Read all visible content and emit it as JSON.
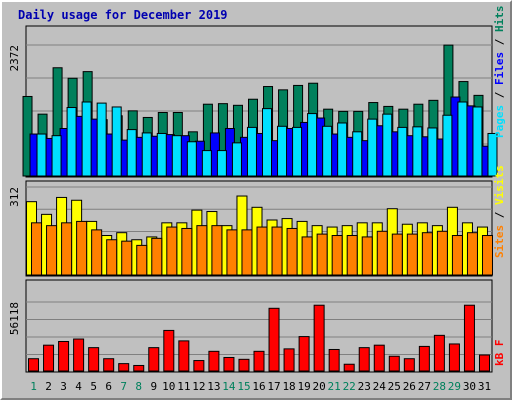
{
  "chart_data": {
    "type": "bar",
    "title": "Daily usage for December 2019",
    "categories": [
      "1",
      "2",
      "3",
      "4",
      "5",
      "6",
      "7",
      "8",
      "9",
      "10",
      "11",
      "12",
      "13",
      "14",
      "15",
      "16",
      "17",
      "18",
      "19",
      "20",
      "21",
      "22",
      "23",
      "24",
      "25",
      "26",
      "27",
      "28",
      "29",
      "30",
      "31"
    ],
    "weekend_days": [
      "1",
      "7",
      "8",
      "14",
      "15",
      "21",
      "22",
      "28",
      "29"
    ],
    "panels": [
      {
        "name": "requests",
        "max_label": "2372",
        "ymax": 2372,
        "ylabel_parts": [
          "Pages",
          "Files",
          "Hits"
        ],
        "series": [
          {
            "name": "Hits",
            "color": "#00805c",
            "values": [
              1440,
              1120,
              1960,
              1770,
              1890,
              1020,
              1090,
              1180,
              1060,
              1150,
              1150,
              800,
              1300,
              1310,
              1280,
              1390,
              1620,
              1560,
              1640,
              1680,
              1210,
              1170,
              1170,
              1330,
              1260,
              1210,
              1300,
              1370,
              2370,
              1710,
              1460
            ]
          },
          {
            "name": "Files",
            "color": "#0000ff",
            "values": [
              760,
              680,
              860,
              1080,
              1030,
              760,
              650,
              700,
              720,
              750,
              730,
              630,
              780,
              860,
              700,
              770,
              640,
              860,
              970,
              1050,
              760,
              700,
              640,
              910,
              800,
              730,
              710,
              670,
              1430,
              1270,
              540
            ]
          },
          {
            "name": "Pages",
            "color": "#00e0ff",
            "values": [
              760,
              730,
              1240,
              1340,
              1320,
              1250,
              840,
              780,
              770,
              730,
              620,
              460,
              460,
              600,
              880,
              1220,
              900,
              880,
              1130,
              900,
              960,
              800,
              1030,
              1120,
              880,
              890,
              870,
              1100,
              1340,
              1250,
              770
            ]
          }
        ]
      },
      {
        "name": "visitors",
        "max_label": "312",
        "ymax": 312,
        "ylabel_parts": [
          "Sites",
          "Visits"
        ],
        "series": [
          {
            "name": "Visits",
            "color": "#ffff00",
            "values": [
              260,
              215,
              275,
              265,
              190,
              140,
              150,
              125,
              135,
              185,
              185,
              230,
              225,
              175,
              280,
              240,
              195,
              200,
              190,
              175,
              170,
              175,
              185,
              185,
              235,
              180,
              185,
              175,
              240,
              185,
              170
            ]
          },
          {
            "name": "Sites",
            "color": "#ff8000",
            "values": [
              185,
              175,
              185,
              190,
              160,
              125,
              120,
              105,
              130,
              170,
              165,
              175,
              175,
              160,
              160,
              170,
              170,
              165,
              135,
              145,
              140,
              140,
              135,
              155,
              145,
              145,
              150,
              155,
              140,
              150,
              140
            ]
          }
        ]
      },
      {
        "name": "volume",
        "max_label": "56118",
        "ymax": 56118,
        "ylabel_parts": [
          "kB F"
        ],
        "series": [
          {
            "name": "kB F",
            "color": "#ff0000",
            "values": [
              10000,
              21000,
              24000,
              26000,
              19000,
              10000,
              6000,
              4500,
              19000,
              33000,
              24500,
              8500,
              16000,
              11000,
              9500,
              16000,
              51000,
              18000,
              28000,
              53500,
              17500,
              5500,
              19000,
              21000,
              12000,
              10000,
              20000,
              29000,
              22000,
              53500,
              13000
            ]
          }
        ]
      }
    ]
  }
}
